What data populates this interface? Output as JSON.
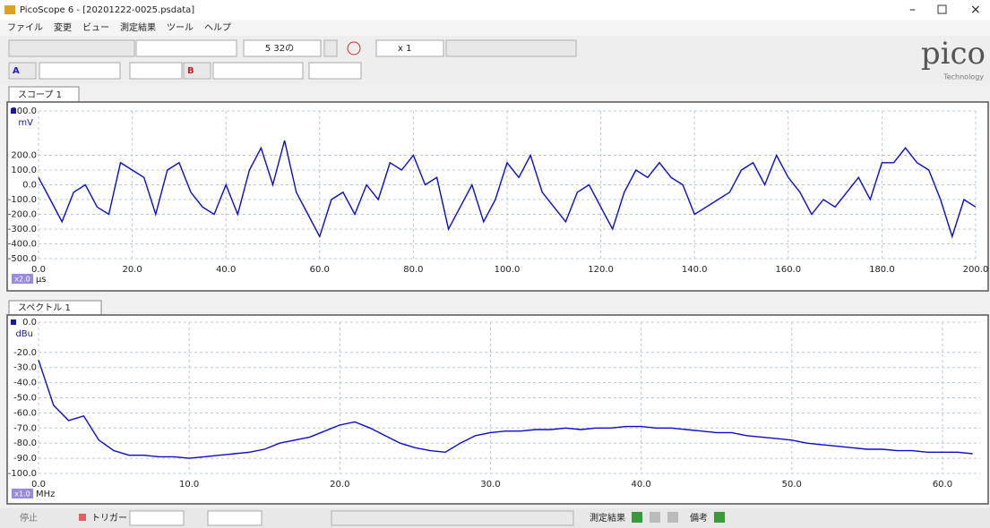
{
  "window": {
    "title": "PicoScope 6 - [20201222-0025.psdata]"
  },
  "menu": [
    "ファイル",
    "変更",
    "ビュー",
    "測定結果",
    "ツール",
    "ヘルプ"
  ],
  "toolbar": {
    "captures": "5 32の",
    "zoom": "x 1",
    "channel_a": "A",
    "channel_b": "B"
  },
  "logo": {
    "name": "pico",
    "tagline": "Technology"
  },
  "scope": {
    "tab": "スコープ 1",
    "unit_y": "mV",
    "unit_x": "μs",
    "x_scale": "x2.0",
    "color": "#0a0ad0",
    "xlim": [
      0,
      200
    ],
    "ylim": [
      -500,
      500
    ],
    "xticks": [
      {
        "value": 0,
        "label": "0.0"
      },
      {
        "value": 20,
        "label": "20.0"
      },
      {
        "value": 40,
        "label": "40.0"
      },
      {
        "value": 60,
        "label": "60.0"
      },
      {
        "value": 80,
        "label": "80.0"
      },
      {
        "value": 100,
        "label": "100.0"
      },
      {
        "value": 120,
        "label": "120.0"
      },
      {
        "value": 140,
        "label": "140.0"
      },
      {
        "value": 160,
        "label": "160.0"
      },
      {
        "value": 180,
        "label": "180.0"
      },
      {
        "value": 200,
        "label": "200.0"
      }
    ],
    "yticks": [
      {
        "value": 500,
        "label": "500.0"
      },
      {
        "value": 200,
        "label": "200.0"
      },
      {
        "value": 100,
        "label": "100.0"
      },
      {
        "value": 0,
        "label": "0.0"
      },
      {
        "value": -100,
        "label": "-100.0"
      },
      {
        "value": -200,
        "label": "-200.0"
      },
      {
        "value": -300,
        "label": "-300.0"
      },
      {
        "value": -400,
        "label": "-400.0"
      },
      {
        "value": -500,
        "label": "-500.0"
      }
    ],
    "x": [
      0,
      2.5,
      5,
      7.5,
      10,
      12.5,
      15,
      17.5,
      20,
      22.5,
      25,
      27.5,
      30,
      32.5,
      35,
      37.5,
      40,
      42.5,
      45,
      47.5,
      50,
      52.5,
      55,
      57.5,
      60,
      62.5,
      65,
      67.5,
      70,
      72.5,
      75,
      77.5,
      80,
      82.5,
      85,
      87.5,
      90,
      92.5,
      95,
      97.5,
      100,
      102.5,
      105,
      107.5,
      110,
      112.5,
      115,
      117.5,
      120,
      122.5,
      125,
      127.5,
      130,
      132.5,
      135,
      137.5,
      140,
      142.5,
      145,
      147.5,
      150,
      152.5,
      155,
      157.5,
      160,
      162.5,
      165,
      167.5,
      170,
      172.5,
      175,
      177.5,
      180,
      182.5,
      185,
      187.5,
      190,
      192.5,
      195,
      197.5,
      200
    ],
    "values": [
      50,
      -100,
      -250,
      -50,
      0,
      -150,
      -200,
      150,
      100,
      50,
      -200,
      100,
      150,
      -50,
      -150,
      -200,
      0,
      -200,
      100,
      250,
      0,
      300,
      -50,
      -200,
      -350,
      -100,
      -50,
      -200,
      0,
      -100,
      150,
      100,
      200,
      0,
      50,
      -300,
      -150,
      0,
      -250,
      -100,
      150,
      50,
      200,
      -50,
      -150,
      -250,
      -50,
      0,
      -150,
      -300,
      -50,
      100,
      50,
      150,
      50,
      0,
      -200,
      -150,
      -100,
      -50,
      100,
      150,
      0,
      200,
      50,
      -50,
      -200,
      -100,
      -150,
      -50,
      50,
      -100,
      150,
      150,
      250,
      150,
      100,
      -100,
      -350,
      -100,
      -150
    ]
  },
  "spectrum": {
    "tab": "スペクトル 1",
    "unit_y": "dBu",
    "unit_x": "MHz",
    "x_scale": "x1.0",
    "color": "#0a0ad0",
    "xlim": [
      0,
      62.5
    ],
    "ylim": [
      -100,
      0
    ],
    "xticks": [
      {
        "value": 0,
        "label": "0.0"
      },
      {
        "value": 10,
        "label": "10.0"
      },
      {
        "value": 20,
        "label": "20.0"
      },
      {
        "value": 30,
        "label": "30.0"
      },
      {
        "value": 40,
        "label": "40.0"
      },
      {
        "value": 50,
        "label": "50.0"
      },
      {
        "value": 60,
        "label": "60.0"
      }
    ],
    "yticks": [
      {
        "value": 0,
        "label": "0.0"
      },
      {
        "value": -20,
        "label": "-20.0"
      },
      {
        "value": -30,
        "label": "-30.0"
      },
      {
        "value": -40,
        "label": "-40.0"
      },
      {
        "value": -50,
        "label": "-50.0"
      },
      {
        "value": -60,
        "label": "-60.0"
      },
      {
        "value": -70,
        "label": "-70.0"
      },
      {
        "value": -80,
        "label": "-80.0"
      },
      {
        "value": -90,
        "label": "-90.0"
      },
      {
        "value": -100,
        "label": "-100.0"
      }
    ],
    "x": [
      0,
      1,
      2,
      3,
      4,
      5,
      6,
      7,
      8,
      9,
      10,
      11,
      12,
      13,
      14,
      15,
      16,
      17,
      18,
      19,
      20,
      21,
      22,
      23,
      24,
      25,
      26,
      27,
      28,
      29,
      30,
      31,
      32,
      33,
      34,
      35,
      36,
      37,
      38,
      39,
      40,
      41,
      42,
      43,
      44,
      45,
      46,
      47,
      48,
      49,
      50,
      51,
      52,
      53,
      54,
      55,
      56,
      57,
      58,
      59,
      60,
      61,
      62
    ],
    "values": [
      -25,
      -55,
      -65,
      -62,
      -78,
      -85,
      -88,
      -88,
      -89,
      -89,
      -90,
      -89,
      -88,
      -87,
      -86,
      -84,
      -80,
      -78,
      -76,
      -72,
      -68,
      -66,
      -70,
      -75,
      -80,
      -83,
      -85,
      -86,
      -80,
      -75,
      -73,
      -72,
      -72,
      -71,
      -71,
      -70,
      -71,
      -70,
      -70,
      -69,
      -69,
      -70,
      -70,
      -71,
      -72,
      -73,
      -73,
      -75,
      -76,
      -77,
      -78,
      -80,
      -81,
      -82,
      -83,
      -84,
      -84,
      -85,
      -85,
      -86,
      -86,
      -86,
      -87
    ]
  },
  "statusbar": {
    "stop": "停止",
    "trigger": "トリガー",
    "measurements": "測定結果",
    "notes": "備考"
  }
}
